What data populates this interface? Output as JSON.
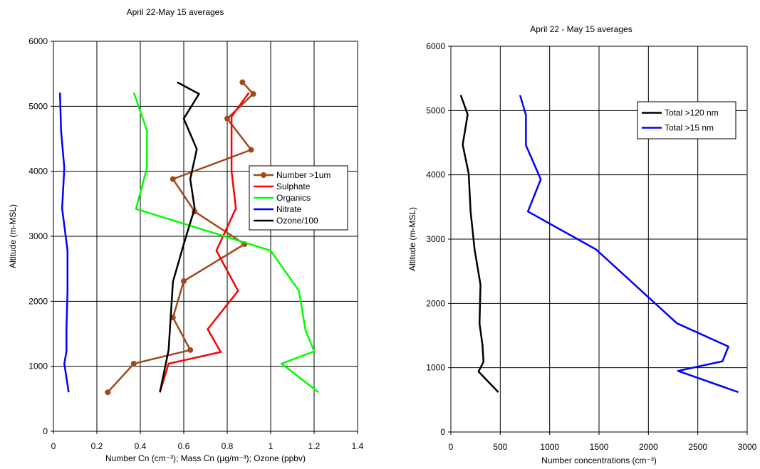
{
  "colors": {
    "number_gt_1um": "#A0481C",
    "sulphate": "#FF0000",
    "organics": "#00FF00",
    "nitrate": "#0000FF",
    "ozone": "#000000",
    "total_120": "#000000",
    "total_15": "#0000FF"
  },
  "chart_data": [
    {
      "type": "line",
      "title": "April 22-May 15 averages",
      "xlabel": "Number Cn (cm⁻³); Mass Cn (µg/m⁻³); Ozone (ppbv)",
      "ylabel": "Altitude (m-MSL)",
      "xlim": [
        0,
        1.4
      ],
      "ylim": [
        0,
        6000
      ],
      "xticks": [
        0,
        0.2,
        0.4,
        0.6,
        0.8,
        1,
        1.2,
        1.4
      ],
      "xtick_labels": [
        "0",
        "0.2",
        "0.4",
        "0.6",
        "0.8",
        "1",
        "1.2",
        "1.4"
      ],
      "yticks": [
        0,
        1000,
        2000,
        3000,
        4000,
        5000,
        6000
      ],
      "ytick_labels": [
        "0",
        "1000",
        "2000",
        "3000",
        "4000",
        "5000",
        "6000"
      ],
      "grid": true,
      "legend_position": "right-middle",
      "series": [
        {
          "name": "Number >1um",
          "color": "#A0481C",
          "markers": true,
          "points": [
            [
              0.25,
              600
            ],
            [
              0.37,
              1040
            ],
            [
              0.63,
              1250
            ],
            [
              0.55,
              1750
            ],
            [
              0.6,
              2310
            ],
            [
              0.88,
              2880
            ],
            [
              0.65,
              3380
            ],
            [
              0.55,
              3880
            ],
            [
              0.91,
              4330
            ],
            [
              0.8,
              4810
            ],
            [
              0.92,
              5190
            ],
            [
              0.87,
              5370
            ]
          ]
        },
        {
          "name": "Sulphate",
          "color": "#FF0000",
          "markers": false,
          "points": [
            [
              0.49,
              600
            ],
            [
              0.53,
              1040
            ],
            [
              0.77,
              1220
            ],
            [
              0.71,
              1570
            ],
            [
              0.85,
              2160
            ],
            [
              0.75,
              2780
            ],
            [
              0.84,
              3430
            ],
            [
              0.82,
              4000
            ],
            [
              0.82,
              4840
            ],
            [
              0.9,
              5210
            ]
          ]
        },
        {
          "name": "Organics",
          "color": "#00FF00",
          "markers": false,
          "points": [
            [
              1.22,
              600
            ],
            [
              1.05,
              1040
            ],
            [
              1.2,
              1230
            ],
            [
              1.16,
              1560
            ],
            [
              1.13,
              2160
            ],
            [
              1.0,
              2780
            ],
            [
              0.38,
              3420
            ],
            [
              0.43,
              4050
            ],
            [
              0.43,
              4630
            ],
            [
              0.37,
              5210
            ]
          ]
        },
        {
          "name": "Nitrate",
          "color": "#0000FF",
          "markers": false,
          "points": [
            [
              0.07,
              600
            ],
            [
              0.05,
              1040
            ],
            [
              0.06,
              1230
            ],
            [
              0.06,
              1570
            ],
            [
              0.065,
              2160
            ],
            [
              0.065,
              2780
            ],
            [
              0.04,
              3430
            ],
            [
              0.05,
              4050
            ],
            [
              0.035,
              4630
            ],
            [
              0.03,
              5210
            ]
          ]
        },
        {
          "name": "Ozone/100",
          "color": "#000000",
          "markers": false,
          "points": [
            [
              0.49,
              600
            ],
            [
              0.53,
              1250
            ],
            [
              0.55,
              2300
            ],
            [
              0.6,
              2880
            ],
            [
              0.65,
              3430
            ],
            [
              0.63,
              3880
            ],
            [
              0.66,
              4340
            ],
            [
              0.6,
              4810
            ],
            [
              0.67,
              5190
            ],
            [
              0.57,
              5370
            ]
          ]
        }
      ]
    },
    {
      "type": "line",
      "title": "April 22 - May 15 averages",
      "xlabel": "Number concentrations (cm⁻³)",
      "ylabel": "Altitude (m-MSL)",
      "xlim": [
        0,
        3000
      ],
      "ylim": [
        0,
        6000
      ],
      "xticks": [
        0,
        500,
        1000,
        1500,
        2000,
        2500,
        3000
      ],
      "xtick_labels": [
        "0",
        "500",
        "1000",
        "1500",
        "2000",
        "2500",
        "3000"
      ],
      "yticks": [
        0,
        1000,
        2000,
        3000,
        4000,
        5000,
        6000
      ],
      "ytick_labels": [
        "0",
        "1000",
        "2000",
        "3000",
        "4000",
        "5000",
        "6000"
      ],
      "grid": true,
      "legend_position": "top-right",
      "series": [
        {
          "name": "Total >120 nm",
          "color": "#000000",
          "markers": false,
          "points": [
            [
              480,
              620
            ],
            [
              280,
              940
            ],
            [
              330,
              1090
            ],
            [
              320,
              1350
            ],
            [
              290,
              1690
            ],
            [
              300,
              2290
            ],
            [
              240,
              2840
            ],
            [
              200,
              3430
            ],
            [
              180,
              4020
            ],
            [
              120,
              4470
            ],
            [
              170,
              4940
            ],
            [
              100,
              5240
            ]
          ]
        },
        {
          "name": "Total >15 nm",
          "color": "#0000FF",
          "markers": false,
          "points": [
            [
              2910,
              620
            ],
            [
              2300,
              950
            ],
            [
              2750,
              1100
            ],
            [
              2810,
              1330
            ],
            [
              2290,
              1690
            ],
            [
              1470,
              2840
            ],
            [
              780,
              3430
            ],
            [
              910,
              3930
            ],
            [
              760,
              4460
            ],
            [
              760,
              4930
            ],
            [
              700,
              5240
            ]
          ]
        }
      ]
    }
  ]
}
